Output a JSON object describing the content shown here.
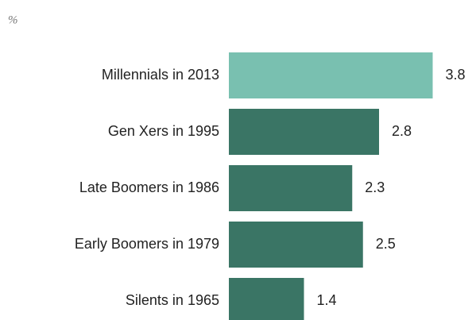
{
  "chart_data": {
    "type": "barh",
    "axis_label": "%",
    "categories": [
      "Millennials in 2013",
      "Gen Xers in 1995",
      "Late Boomers in 1986",
      "Early Boomers in 1979",
      "Silents in 1965"
    ],
    "values": [
      3.8,
      2.8,
      2.3,
      2.5,
      1.4
    ],
    "colors": [
      "#79c0b0",
      "#3a7565",
      "#3a7565",
      "#3a7565",
      "#3a7565"
    ],
    "xlim": [
      0,
      4
    ]
  }
}
